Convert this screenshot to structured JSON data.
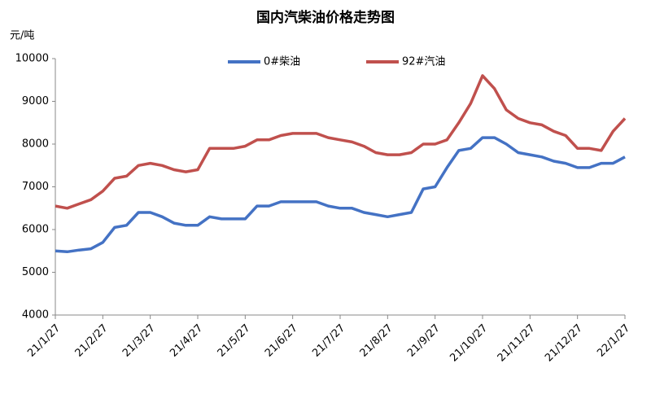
{
  "chart_data": {
    "type": "line",
    "title": "国内汽柴油价格走势图",
    "y_label": "元/吨",
    "categories": [
      "21/1/27",
      null,
      null,
      null,
      "21/2/27",
      null,
      null,
      null,
      "21/3/27",
      null,
      null,
      null,
      "21/4/27",
      null,
      null,
      null,
      "21/5/27",
      null,
      null,
      null,
      "21/6/27",
      null,
      null,
      null,
      "21/7/27",
      null,
      null,
      null,
      "21/8/27",
      null,
      null,
      null,
      "21/9/27",
      null,
      null,
      null,
      "21/10/27",
      null,
      null,
      null,
      "21/11/27",
      null,
      null,
      null,
      "21/12/27",
      null,
      null,
      null,
      "22/1/27"
    ],
    "series": [
      {
        "name": "0#柴油",
        "color": "#4472c4",
        "values": [
          5500,
          5480,
          5520,
          5550,
          5700,
          6050,
          6100,
          6400,
          6400,
          6300,
          6150,
          6100,
          6100,
          6300,
          6250,
          6250,
          6250,
          6550,
          6550,
          6650,
          6650,
          6650,
          6650,
          6550,
          6500,
          6500,
          6400,
          6350,
          6300,
          6350,
          6400,
          6950,
          7000,
          7450,
          7850,
          7900,
          8150,
          8150,
          8000,
          7800,
          7750,
          7700,
          7600,
          7550,
          7450,
          7450,
          7550,
          7550,
          7700
        ]
      },
      {
        "name": "92#汽油",
        "color": "#c0504d",
        "values": [
          6550,
          6500,
          6600,
          6700,
          6900,
          7200,
          7250,
          7500,
          7550,
          7500,
          7400,
          7350,
          7400,
          7900,
          7900,
          7900,
          7950,
          8100,
          8100,
          8200,
          8250,
          8250,
          8250,
          8150,
          8100,
          8050,
          7950,
          7800,
          7750,
          7750,
          7800,
          8000,
          8000,
          8100,
          8500,
          8950,
          9600,
          9300,
          8800,
          8600,
          8500,
          8450,
          8300,
          8200,
          7900,
          7900,
          7850,
          8300,
          8600
        ]
      }
    ],
    "ylim": [
      4000,
      10000
    ],
    "yticks": [
      4000,
      5000,
      6000,
      7000,
      8000,
      9000,
      10000
    ],
    "grid": false,
    "legend": "top"
  }
}
